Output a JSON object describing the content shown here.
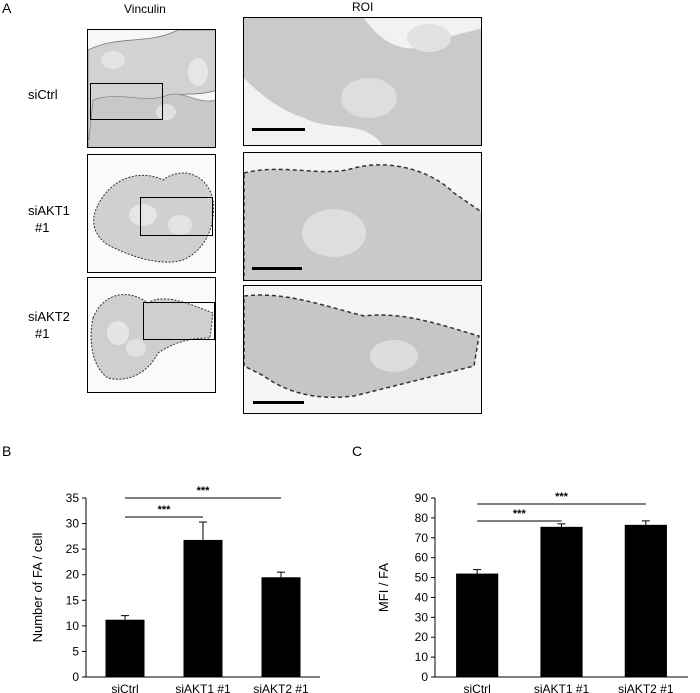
{
  "figure": {
    "panel_labels": [
      "A",
      "B",
      "C"
    ],
    "column_headers": [
      "Vinculin",
      "ROI"
    ],
    "row_labels": [
      [
        "siCtrl"
      ],
      [
        "siAKT1",
        "#1"
      ],
      [
        "siAKT2",
        "#1"
      ]
    ]
  },
  "chart_data": [
    {
      "type": "bar",
      "panel": "B",
      "ylabel": "Number of FA / cell",
      "categories": [
        "siCtrl",
        "siAKT1 #1",
        "siAKT2 #1"
      ],
      "values": [
        11.2,
        26.8,
        19.5
      ],
      "errors": [
        0.8,
        3.5,
        1.0
      ],
      "ylim": [
        0,
        35
      ],
      "yticks": [
        0,
        5,
        10,
        15,
        20,
        25,
        30,
        35
      ],
      "significance": [
        {
          "from": 0,
          "to": 1,
          "label": "***"
        },
        {
          "from": 0,
          "to": 2,
          "label": "***"
        }
      ],
      "bar_color": "#000000"
    },
    {
      "type": "bar",
      "panel": "C",
      "ylabel": "MFI / FA",
      "categories": [
        "siCtrl",
        "siAKT1 #1",
        "siAKT2 #1"
      ],
      "values": [
        52,
        75.5,
        76.5
      ],
      "errors": [
        2,
        1.5,
        2
      ],
      "ylim": [
        0,
        90
      ],
      "yticks": [
        0,
        10,
        20,
        30,
        40,
        50,
        60,
        70,
        80,
        90
      ],
      "significance": [
        {
          "from": 0,
          "to": 1,
          "label": "***"
        },
        {
          "from": 0,
          "to": 2,
          "label": "***"
        }
      ],
      "bar_color": "#000000"
    }
  ]
}
